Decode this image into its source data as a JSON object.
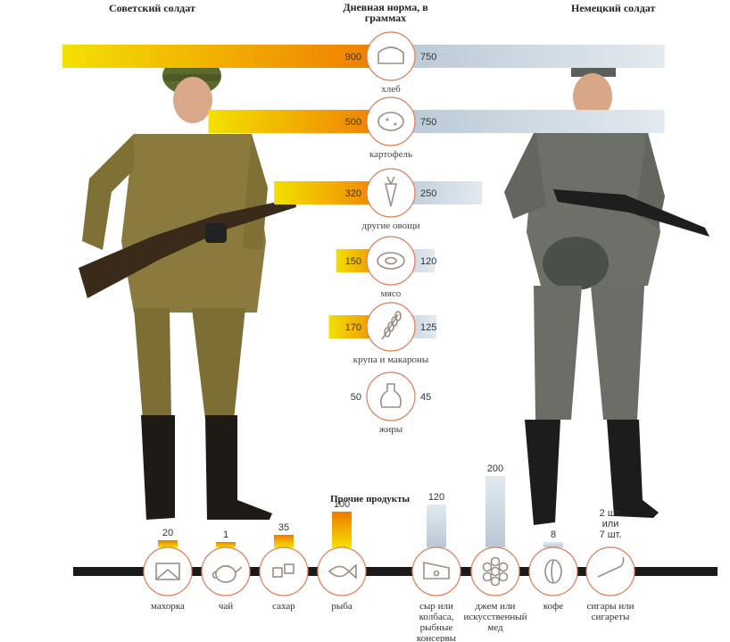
{
  "header": {
    "left": "Советский солдат",
    "right": "Немецкий солдат",
    "center": "Дневная норма, в граммах"
  },
  "colors": {
    "soviet": "#f0a020",
    "soviet_start": "#f3e000",
    "soviet_end": "#ee7a00",
    "german": "#b8c8d4",
    "german_light": "#e3eaf0",
    "circle_border": "#e07a55",
    "line": "#1a1a1a"
  },
  "chart_data": [
    {
      "type": "bar",
      "title": "Дневная норма, в граммах",
      "categories": [
        "хлеб",
        "картофель",
        "другие овощи",
        "мясо",
        "крупа и макароны",
        "жиры"
      ],
      "icons": [
        "bread-icon",
        "potato-icon",
        "carrot-icon",
        "meat-icon",
        "grain-icon",
        "oil-jug-icon"
      ],
      "series": [
        {
          "name": "Советский солдат",
          "values": [
            900,
            500,
            320,
            150,
            170,
            50
          ]
        },
        {
          "name": "Немецкий солдат",
          "values": [
            750,
            750,
            250,
            120,
            125,
            45
          ]
        }
      ]
    },
    {
      "type": "bar",
      "title": "Прочие продукты",
      "categories": [
        "махорка",
        "чай",
        "сахар",
        "рыба",
        "сыр или колбаса, рыбные консервы",
        "джем или искусственный мед",
        "кофе",
        "сигары или сигареты"
      ],
      "icons": [
        "tobacco-icon",
        "teapot-icon",
        "sugar-icon",
        "fish-icon",
        "cheese-icon",
        "honeycomb-icon",
        "coffee-bean-icon",
        "cigarette-icon"
      ],
      "series": [
        {
          "name": "Советский солдат",
          "values": [
            20,
            1,
            35,
            100,
            null,
            null,
            null,
            null
          ]
        },
        {
          "name": "Немецкий солдат",
          "values": [
            null,
            null,
            null,
            null,
            120,
            200,
            8,
            2
          ]
        }
      ],
      "value_labels": [
        "20",
        "1",
        "35",
        "100",
        "120",
        "200",
        "8",
        "2 шт. или 7 шт."
      ]
    }
  ]
}
